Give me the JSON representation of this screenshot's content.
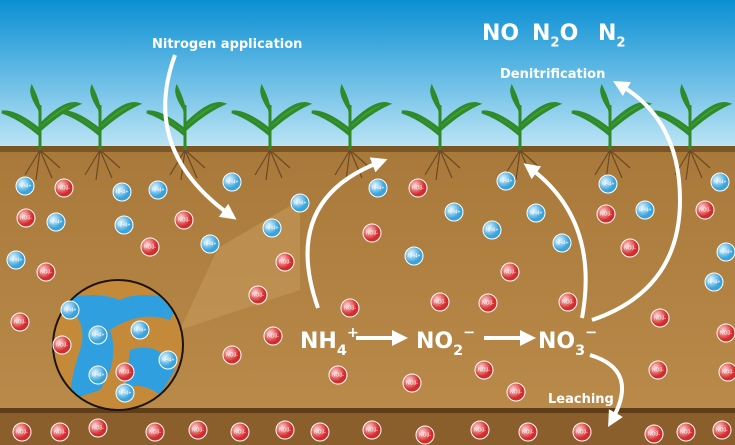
{
  "labels": {
    "nitrogen_application": "Nitrogen application",
    "denitrification": "Denitrification",
    "leaching": "Leaching"
  },
  "gases": [
    {
      "base": "NO"
    },
    {
      "base": "N",
      "sub": "2",
      "rest": "O"
    },
    {
      "base": "N",
      "sub": "2"
    }
  ],
  "chain": [
    {
      "base": "NH",
      "sub": "4",
      "sup": "+"
    },
    {
      "base": "NO",
      "sub": "2",
      "sup": "−"
    },
    {
      "base": "NO",
      "sub": "3",
      "sup": "−"
    }
  ],
  "particles": {
    "ammonium": "NH4+",
    "nitrate": "NO3-"
  }
}
